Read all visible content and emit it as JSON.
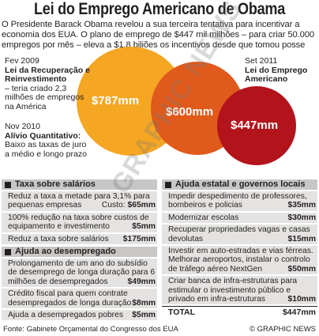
{
  "title": "Lei do Emprego Americano de Obama",
  "intro": "O Presidente Barack Obama revelou a sua terceira tentativa para incentivar a economia dos EUA. O plano de emprego de $447 mil milhões – para criar 50.000 empregos por mês – eleva a $1,8 biliões os incentivos desde que tomou posse",
  "chart_data": {
    "type": "bubble",
    "items": [
      {
        "label": "Lei da Recuperação e Reinvestimento",
        "date": "Fev 2009",
        "value": 787,
        "display": "$787mm",
        "color": "#f5a623"
      },
      {
        "label": "Alívio Quantitativo:",
        "date": "Nov 2010",
        "value": 600,
        "display": "$600mm",
        "color": "#e05a1c"
      },
      {
        "label": "Lei do Emprego Americano",
        "date": "Set 2011",
        "value": 447,
        "display": "$447mm",
        "color": "#b3131b"
      }
    ]
  },
  "annotations": {
    "a1": {
      "date": "Fev 2009",
      "head": "Lei da Recuperação e Reinvestimento",
      "body": "– teria criado 2,3 milhões de empregos na América"
    },
    "a2": {
      "date": "Nov 2010",
      "head": "Alívio Quantitativo:",
      "body": "Baixo as taxas de juro a médio e longo prazo"
    },
    "a3": {
      "date": "Set 2011",
      "head": "Lei do Emprego Americano"
    }
  },
  "watermark": "GRAPHIC NEWS",
  "left_panel_1": {
    "title": "Taxa sobre salários",
    "rows": [
      {
        "text": "Reduz a taxa a metade para 3,1% para pequenas empresas",
        "suffix": "Custo:",
        "amount": "$65mm"
      },
      {
        "text": "100% redução na taxa sobre custos de equipamento e investimento",
        "amount": "$5mm"
      },
      {
        "text": "Reduz a taxa sobre salários",
        "amount": "$175mm"
      }
    ]
  },
  "left_panel_2": {
    "title": "Ajuda ao desempregado",
    "rows": [
      {
        "text": "Prolongamento de um ano do subsídio de desemprego de longa duração para 6 milhões de desempregados",
        "amount": "$49mm"
      },
      {
        "text": "Crédito fiscal para quem contrate desempregados de longa duração",
        "amount": "$8mm"
      },
      {
        "text": "Ajuda a desempregados pobres",
        "amount": "$5mm"
      }
    ]
  },
  "right_panel": {
    "title": "Ajuda estatal e governos locais",
    "rows": [
      {
        "text": "Impedir despedimento de professores, bombeiros e policias",
        "amount": "$35mm"
      },
      {
        "text": "Modernizar escolas",
        "amount": "$30mm"
      },
      {
        "text": "Recuperar propriedades vagas e casas devolutas",
        "amount": "$15mm"
      },
      {
        "text": "Investir em auto-estradas e vias férreas. Melhorar aeroportos, instalar o controlo de tráfego aéreo NextGen",
        "amount": "$50mm"
      },
      {
        "text": "Criar banca de infra-estruturas para estimular o investimento público e privado em infra-estruturas",
        "amount": "$10mm"
      }
    ],
    "total_label": "TOTAL",
    "total_amount": "$447mm"
  },
  "footer": {
    "source": "Fonte: Gabinete Orçamental do Congresso dos EUA",
    "credit": "© GRAPHIC NEWS"
  }
}
